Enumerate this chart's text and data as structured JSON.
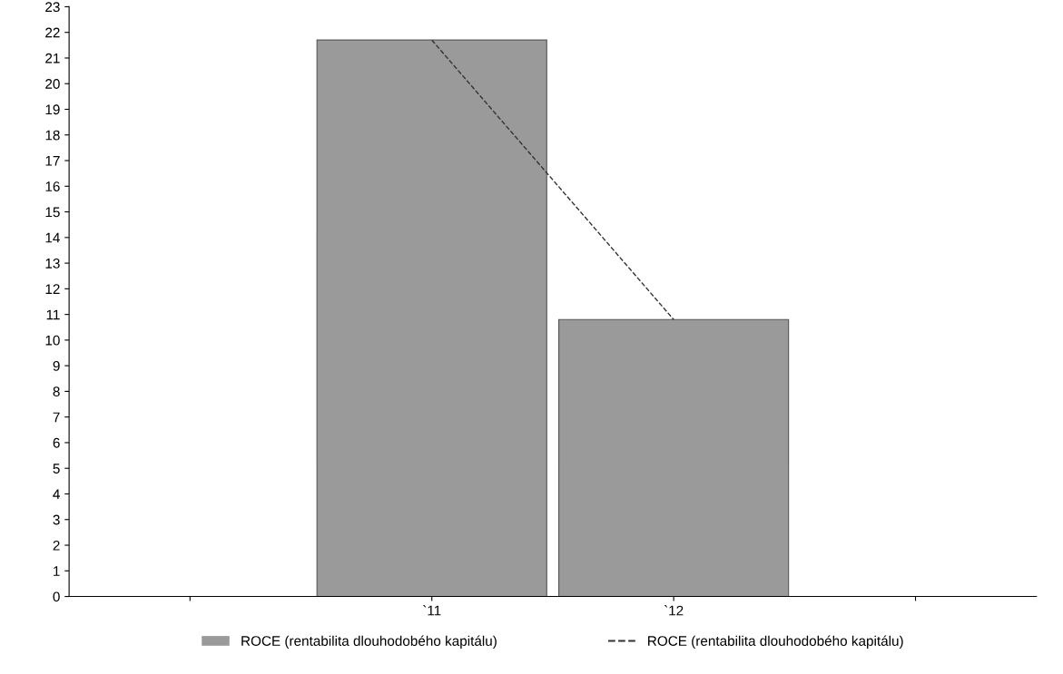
{
  "chart_data": {
    "type": "bar",
    "categories": [
      null,
      "`11",
      "`12",
      null
    ],
    "series": [
      {
        "name": "ROCE (rentabilita dlouhodobého kapitálu)",
        "color": "#9a9a9a",
        "values": [
          null,
          21.7,
          10.8,
          null
        ]
      },
      {
        "name": "ROCE (rentabilita dlouhodobého kapitálu)",
        "type": "line",
        "color": "#333333",
        "values": [
          null,
          21.7,
          10.8,
          null
        ],
        "line_style": "dashed",
        "marker": "none"
      }
    ],
    "ylim": [
      0,
      23
    ],
    "yticks": [
      0,
      1,
      2,
      3,
      4,
      5,
      6,
      7,
      8,
      9,
      10,
      11,
      12,
      13,
      14,
      15,
      16,
      17,
      18,
      19,
      20,
      21,
      22,
      23
    ],
    "grid": false,
    "legend": "bottom"
  }
}
